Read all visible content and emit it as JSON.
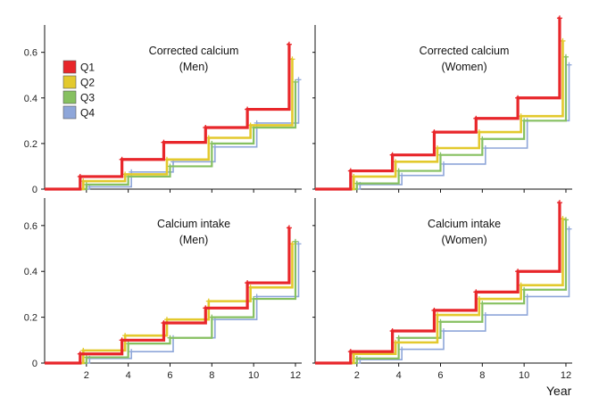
{
  "figure": {
    "xlabel": "Year",
    "legend": {
      "placement": "inside top-left of first panel",
      "entries": [
        {
          "label": "Q1",
          "color": "#e8262a"
        },
        {
          "label": "Q2",
          "color": "#e3c92d"
        },
        {
          "label": "Q3",
          "color": "#86c060"
        },
        {
          "label": "Q4",
          "color": "#8ea6d9"
        }
      ]
    }
  },
  "chart_data": [
    {
      "type": "line",
      "step": true,
      "title_line1": "Corrected calcium",
      "title_line2": "(Men)",
      "xlim": [
        0,
        12.3
      ],
      "ylim": [
        0,
        0.72
      ],
      "xticks": [
        "2",
        "4",
        "6",
        "8",
        "10",
        "12"
      ],
      "yticks": [
        "0",
        "0.2",
        "0.4",
        "0.6"
      ],
      "series": [
        {
          "name": "Q1",
          "x": [
            1.7,
            3.7,
            5.7,
            7.7,
            9.7,
            11.7
          ],
          "y": [
            0.055,
            0.13,
            0.205,
            0.27,
            0.35,
            0.635
          ]
        },
        {
          "name": "Q2",
          "x": [
            1.85,
            3.85,
            5.85,
            7.85,
            9.85,
            11.85
          ],
          "y": [
            0.035,
            0.065,
            0.13,
            0.225,
            0.28,
            0.57
          ]
        },
        {
          "name": "Q3",
          "x": [
            2.0,
            4.0,
            6.0,
            8.0,
            10.0,
            12.0
          ],
          "y": [
            0.02,
            0.055,
            0.1,
            0.2,
            0.27,
            0.47
          ]
        },
        {
          "name": "Q4",
          "x": [
            2.15,
            4.15,
            6.15,
            8.15,
            10.15,
            12.15
          ],
          "y": [
            0.01,
            0.075,
            0.12,
            0.185,
            0.29,
            0.48
          ]
        }
      ]
    },
    {
      "type": "line",
      "step": true,
      "title_line1": "Corrected calcium",
      "title_line2": "(Women)",
      "xlim": [
        0,
        12.3
      ],
      "ylim": [
        0,
        0.72
      ],
      "xticks": [
        "2",
        "4",
        "6",
        "8",
        "10",
        "12"
      ],
      "yticks": [
        "0",
        "0.2",
        "0.4",
        "0.6"
      ],
      "series": [
        {
          "name": "Q1",
          "x": [
            1.7,
            3.7,
            5.7,
            7.7,
            9.7,
            11.7
          ],
          "y": [
            0.08,
            0.15,
            0.25,
            0.31,
            0.4,
            0.75
          ]
        },
        {
          "name": "Q2",
          "x": [
            1.85,
            3.85,
            5.85,
            7.85,
            9.85,
            11.85
          ],
          "y": [
            0.055,
            0.12,
            0.18,
            0.25,
            0.32,
            0.65
          ]
        },
        {
          "name": "Q3",
          "x": [
            2.0,
            4.0,
            6.0,
            8.0,
            10.0,
            12.0
          ],
          "y": [
            0.025,
            0.08,
            0.15,
            0.22,
            0.3,
            0.58
          ]
        },
        {
          "name": "Q4",
          "x": [
            2.15,
            4.15,
            6.15,
            8.15,
            10.15,
            12.15
          ],
          "y": [
            0.02,
            0.06,
            0.11,
            0.18,
            0.3,
            0.545
          ]
        }
      ]
    },
    {
      "type": "line",
      "step": true,
      "title_line1": "Calcium intake",
      "title_line2": "(Men)",
      "xlim": [
        0,
        12.3
      ],
      "ylim": [
        0,
        0.72
      ],
      "xticks": [
        "2",
        "4",
        "6",
        "8",
        "10",
        "12"
      ],
      "yticks": [
        "0",
        "0.2",
        "0.4",
        "0.6"
      ],
      "series": [
        {
          "name": "Q1",
          "x": [
            1.7,
            3.7,
            5.7,
            7.7,
            9.7,
            11.7
          ],
          "y": [
            0.04,
            0.1,
            0.175,
            0.24,
            0.35,
            0.59
          ]
        },
        {
          "name": "Q2",
          "x": [
            1.85,
            3.85,
            5.85,
            7.85,
            9.85,
            11.85
          ],
          "y": [
            0.055,
            0.12,
            0.19,
            0.27,
            0.33,
            0.52
          ]
        },
        {
          "name": "Q3",
          "x": [
            2.0,
            4.0,
            6.0,
            8.0,
            10.0,
            12.0
          ],
          "y": [
            0.025,
            0.085,
            0.11,
            0.2,
            0.28,
            0.53
          ]
        },
        {
          "name": "Q4",
          "x": [
            2.15,
            4.15,
            6.15,
            8.15,
            10.15,
            12.15
          ],
          "y": [
            0.02,
            0.05,
            0.11,
            0.19,
            0.29,
            0.52
          ]
        }
      ]
    },
    {
      "type": "line",
      "step": true,
      "title_line1": "Calcium intake",
      "title_line2": "(Women)",
      "xlim": [
        0,
        12.3
      ],
      "ylim": [
        0,
        0.72
      ],
      "xticks": [
        "2",
        "4",
        "6",
        "8",
        "10",
        "12"
      ],
      "yticks": [
        "0",
        "0.2",
        "0.4",
        "0.6"
      ],
      "series": [
        {
          "name": "Q1",
          "x": [
            1.7,
            3.7,
            5.7,
            7.7,
            9.7,
            11.7
          ],
          "y": [
            0.05,
            0.14,
            0.23,
            0.31,
            0.4,
            0.7
          ]
        },
        {
          "name": "Q2",
          "x": [
            1.85,
            3.85,
            5.85,
            7.85,
            9.85,
            11.85
          ],
          "y": [
            0.04,
            0.09,
            0.21,
            0.28,
            0.34,
            0.63
          ]
        },
        {
          "name": "Q3",
          "x": [
            2.0,
            4.0,
            6.0,
            8.0,
            10.0,
            12.0
          ],
          "y": [
            0.02,
            0.11,
            0.18,
            0.26,
            0.32,
            0.625
          ]
        },
        {
          "name": "Q4",
          "x": [
            2.15,
            4.15,
            6.15,
            8.15,
            10.15,
            12.15
          ],
          "y": [
            0.015,
            0.06,
            0.14,
            0.21,
            0.29,
            0.585
          ]
        }
      ]
    }
  ]
}
